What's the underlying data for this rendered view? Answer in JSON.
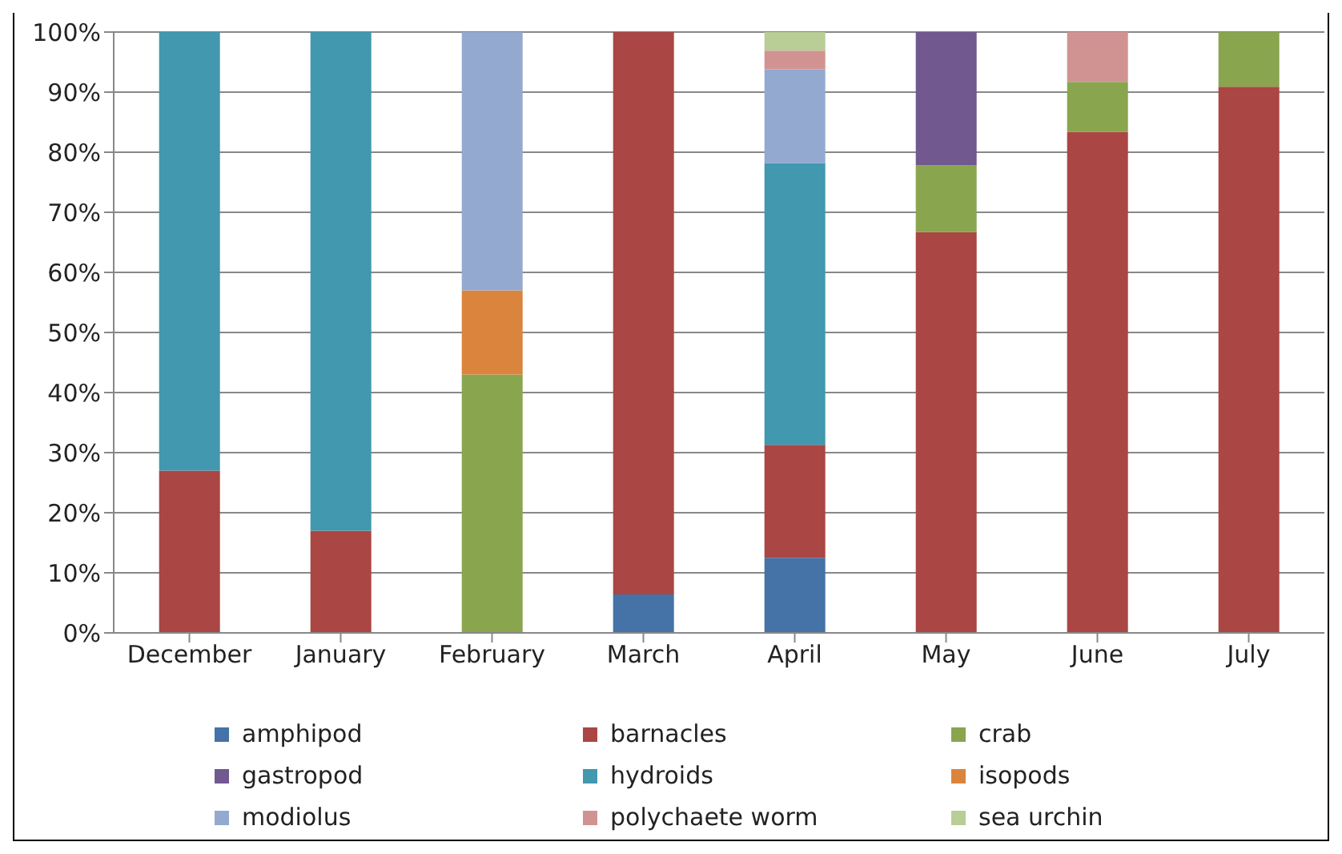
{
  "chart_data": {
    "type": "bar",
    "stacked": true,
    "categories": [
      "December",
      "January",
      "February",
      "March",
      "April",
      "May",
      "June",
      "July"
    ],
    "series": [
      {
        "name": "amphipod",
        "color": "#4572a7",
        "values": [
          null,
          null,
          null,
          6.4,
          12.5,
          null,
          null,
          null
        ]
      },
      {
        "name": "barnacles",
        "color": "#aa4643",
        "values": [
          27,
          17,
          null,
          93.6,
          18.8,
          66.7,
          83.4,
          90.9
        ]
      },
      {
        "name": "crab",
        "color": "#89a54e",
        "values": [
          null,
          null,
          43,
          null,
          null,
          11.1,
          8.3,
          9.1
        ]
      },
      {
        "name": "gastropod",
        "color": "#71588f",
        "values": [
          null,
          null,
          null,
          null,
          null,
          22.2,
          null,
          null
        ]
      },
      {
        "name": "hydroids",
        "color": "#4198af",
        "values": [
          73,
          83,
          null,
          null,
          46.9,
          null,
          null,
          null
        ]
      },
      {
        "name": "isopods",
        "color": "#db843d",
        "values": [
          null,
          null,
          14,
          null,
          null,
          null,
          null,
          null
        ]
      },
      {
        "name": "modiolus",
        "color": "#93a9cf",
        "values": [
          null,
          null,
          43,
          null,
          15.6,
          null,
          null,
          null
        ]
      },
      {
        "name": "polychaete worm",
        "color": "#d19392",
        "values": [
          null,
          null,
          null,
          null,
          3.1,
          null,
          8.3,
          null
        ]
      },
      {
        "name": "sea urchin",
        "color": "#b9cd96",
        "values": [
          null,
          null,
          null,
          null,
          3.1,
          null,
          null,
          null
        ]
      }
    ],
    "ylim": [
      0,
      100
    ],
    "yticks": [
      {
        "value": 0,
        "label": "0%"
      },
      {
        "value": 10,
        "label": "10%"
      },
      {
        "value": 20,
        "label": "20%"
      },
      {
        "value": 30,
        "label": "30%"
      },
      {
        "value": 40,
        "label": "40%"
      },
      {
        "value": 50,
        "label": "50%"
      },
      {
        "value": 60,
        "label": "60%"
      },
      {
        "value": 70,
        "label": "70%"
      },
      {
        "value": 80,
        "label": "80%"
      },
      {
        "value": 90,
        "label": "90%"
      },
      {
        "value": 100,
        "label": "100%"
      }
    ],
    "grid": "y",
    "legend": "bottom"
  }
}
